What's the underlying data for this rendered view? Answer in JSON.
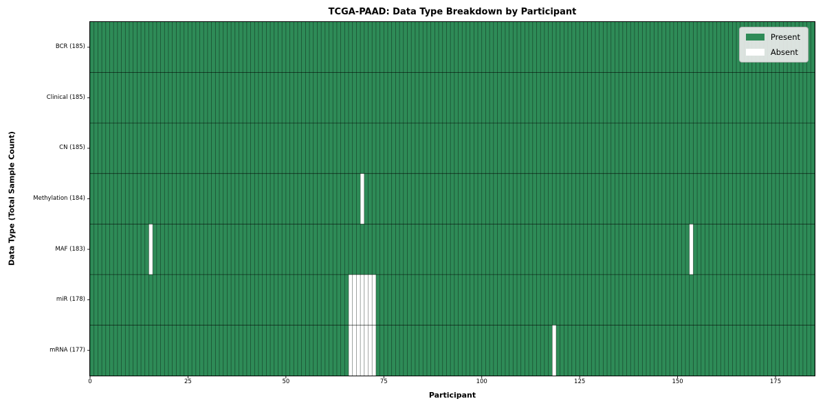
{
  "chart_data": {
    "type": "heatmap",
    "title": "TCGA-PAAD: Data Type Breakdown by Participant",
    "xlabel": "Participant",
    "ylabel": "Data Type (Total Sample Count)",
    "x_range": [
      0,
      185
    ],
    "n_participants": 185,
    "x_ticks": [
      0,
      25,
      50,
      75,
      100,
      125,
      150,
      175
    ],
    "grid": "cell-borders",
    "legend_position": "upper right",
    "rows": [
      {
        "label": "BCR (185)",
        "data_type": "BCR",
        "total": 185,
        "absent_participants": []
      },
      {
        "label": "Clinical (185)",
        "data_type": "Clinical",
        "total": 185,
        "absent_participants": []
      },
      {
        "label": "CN (185)",
        "data_type": "CN",
        "total": 185,
        "absent_participants": []
      },
      {
        "label": "Methylation (184)",
        "data_type": "Methylation",
        "total": 184,
        "absent_participants": [
          69
        ]
      },
      {
        "label": "MAF (183)",
        "data_type": "MAF",
        "total": 183,
        "absent_participants": [
          15,
          153
        ]
      },
      {
        "label": "miR (178)",
        "data_type": "miR",
        "total": 178,
        "absent_participants": [
          66,
          67,
          68,
          69,
          70,
          71,
          72
        ]
      },
      {
        "label": "mRNA (177)",
        "data_type": "mRNA",
        "total": 177,
        "absent_participants": [
          66,
          67,
          68,
          69,
          70,
          71,
          72,
          118
        ]
      }
    ],
    "legend": [
      {
        "label": "Present",
        "color": "#2e8b57"
      },
      {
        "label": "Absent",
        "color": "#ffffff"
      }
    ],
    "colors": {
      "present": "#2e8b57",
      "absent": "#ffffff",
      "cell_border": "rgba(0,0,0,0.5)",
      "row_border": "rgba(0,0,0,0.65)",
      "plot_border": "#000000",
      "legend_bg": "#eaeaea",
      "legend_border": "#b5b5b5"
    }
  }
}
